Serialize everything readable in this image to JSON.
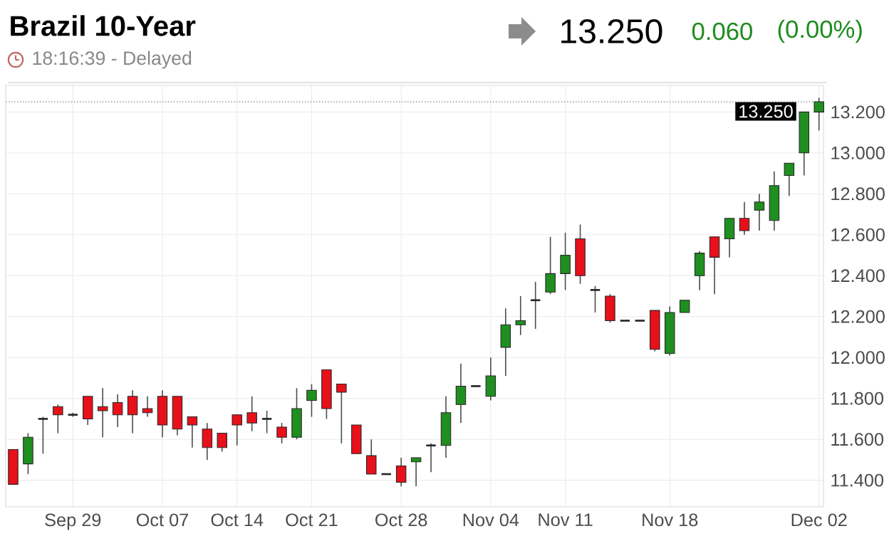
{
  "chart_data": {
    "type": "candlestick",
    "title": "Brazil 10-Year",
    "subtitle": "18:16:39 - Delayed",
    "annotations": [
      "13.250",
      "0.060",
      "(0.00%)"
    ],
    "categories": [
      null,
      null,
      null,
      null,
      "Sep 29",
      null,
      null,
      null,
      null,
      null,
      "Oct 07",
      null,
      null,
      null,
      null,
      "Oct 14",
      null,
      null,
      null,
      null,
      "Oct 21",
      null,
      null,
      null,
      null,
      null,
      "Oct 28",
      null,
      null,
      null,
      null,
      null,
      "Nov 04",
      null,
      null,
      null,
      null,
      "Nov 11",
      null,
      null,
      null,
      null,
      null,
      null,
      "Nov 18",
      null,
      null,
      null,
      null,
      null,
      null,
      null,
      null,
      null,
      "Dec 02"
    ],
    "ohlc": [
      [
        11.55,
        11.55,
        11.38,
        11.38
      ],
      [
        11.48,
        11.63,
        11.43,
        11.61
      ],
      [
        11.7,
        11.71,
        11.53,
        11.7
      ],
      [
        11.76,
        11.77,
        11.63,
        11.72
      ],
      [
        11.72,
        11.73,
        11.71,
        11.72
      ],
      [
        11.81,
        11.81,
        11.67,
        11.7
      ],
      [
        11.76,
        11.85,
        11.61,
        11.74
      ],
      [
        11.78,
        11.82,
        11.66,
        11.72
      ],
      [
        11.81,
        11.84,
        11.63,
        11.72
      ],
      [
        11.75,
        11.81,
        11.71,
        11.73
      ],
      [
        11.81,
        11.84,
        11.61,
        11.67
      ],
      [
        11.81,
        11.81,
        11.62,
        11.65
      ],
      [
        11.71,
        11.71,
        11.56,
        11.67
      ],
      [
        11.65,
        11.68,
        11.5,
        11.56
      ],
      [
        11.63,
        11.63,
        11.54,
        11.56
      ],
      [
        11.72,
        11.72,
        11.57,
        11.67
      ],
      [
        11.73,
        11.81,
        11.64,
        11.68
      ],
      [
        11.7,
        11.74,
        11.63,
        11.7
      ],
      [
        11.66,
        11.68,
        11.58,
        11.61
      ],
      [
        11.61,
        11.85,
        11.6,
        11.75
      ],
      [
        11.79,
        11.87,
        11.71,
        11.84
      ],
      [
        11.94,
        11.94,
        11.7,
        11.75
      ],
      [
        11.87,
        11.87,
        11.58,
        11.83
      ],
      [
        11.67,
        11.67,
        11.53,
        11.53
      ],
      [
        11.52,
        11.6,
        11.43,
        11.43
      ],
      [
        11.43,
        11.43,
        11.43,
        11.43
      ],
      [
        11.47,
        11.51,
        11.37,
        11.39
      ],
      [
        11.49,
        11.51,
        11.37,
        11.51
      ],
      [
        11.57,
        11.58,
        11.44,
        11.57
      ],
      [
        11.57,
        11.81,
        11.51,
        11.73
      ],
      [
        11.77,
        11.97,
        11.68,
        11.86
      ],
      [
        11.86,
        11.86,
        11.86,
        11.86
      ],
      [
        11.81,
        12.0,
        11.79,
        11.91
      ],
      [
        12.05,
        12.24,
        11.91,
        12.16
      ],
      [
        12.16,
        12.3,
        12.11,
        12.18
      ],
      [
        12.28,
        12.37,
        12.14,
        12.28
      ],
      [
        12.32,
        12.59,
        12.31,
        12.41
      ],
      [
        12.41,
        12.61,
        12.33,
        12.5
      ],
      [
        12.58,
        12.65,
        12.36,
        12.4
      ],
      [
        12.33,
        12.35,
        12.22,
        12.33
      ],
      [
        12.3,
        12.31,
        12.17,
        12.18
      ],
      [
        12.18,
        12.18,
        12.18,
        12.18
      ],
      [
        12.18,
        12.18,
        12.18,
        12.18
      ],
      [
        12.23,
        12.23,
        12.03,
        12.04
      ],
      [
        12.02,
        12.25,
        12.01,
        12.22
      ],
      [
        12.22,
        12.28,
        12.22,
        12.28
      ],
      [
        12.4,
        12.52,
        12.33,
        12.51
      ],
      [
        12.59,
        12.59,
        12.31,
        12.49
      ],
      [
        12.58,
        12.68,
        12.49,
        12.68
      ],
      [
        12.68,
        12.76,
        12.6,
        12.62
      ],
      [
        12.72,
        12.8,
        12.62,
        12.76
      ],
      [
        12.67,
        12.91,
        12.62,
        12.84
      ],
      [
        12.89,
        12.95,
        12.79,
        12.95
      ],
      [
        13.0,
        13.2,
        12.89,
        13.2
      ],
      [
        13.2,
        13.27,
        13.11,
        13.25
      ]
    ],
    "colors": [
      "#e8101a",
      "#1f8f1f",
      "#333333",
      "#e8101a",
      "#333333",
      "#e8101a",
      "#e8101a",
      "#e8101a",
      "#e8101a",
      "#e8101a",
      "#e8101a",
      "#e8101a",
      "#e8101a",
      "#e8101a",
      "#e8101a",
      "#e8101a",
      "#e8101a",
      "#333333",
      "#e8101a",
      "#1f8f1f",
      "#1f8f1f",
      "#e8101a",
      "#e8101a",
      "#e8101a",
      "#e8101a",
      "#333333",
      "#e8101a",
      "#1f8f1f",
      "#333333",
      "#1f8f1f",
      "#1f8f1f",
      "#333333",
      "#1f8f1f",
      "#1f8f1f",
      "#1f8f1f",
      "#333333",
      "#1f8f1f",
      "#1f8f1f",
      "#e8101a",
      "#333333",
      "#e8101a",
      "#333333",
      "#333333",
      "#e8101a",
      "#1f8f1f",
      "#1f8f1f",
      "#1f8f1f",
      "#e8101a",
      "#1f8f1f",
      "#e8101a",
      "#1f8f1f",
      "#1f8f1f",
      "#1f8f1f",
      "#1f8f1f",
      "#1f8f1f"
    ],
    "ylim": [
      11.27,
      13.33
    ],
    "yticks": [
      {
        "value": 11.4,
        "label": "11.400"
      },
      {
        "value": 11.6,
        "label": "11.600"
      },
      {
        "value": 11.8,
        "label": "11.800"
      },
      {
        "value": 12.0,
        "label": "12.000"
      },
      {
        "value": 12.2,
        "label": "12.200"
      },
      {
        "value": 12.4,
        "label": "12.400"
      },
      {
        "value": 12.6,
        "label": "12.600"
      },
      {
        "value": 12.8,
        "label": "12.800"
      },
      {
        "value": 13.0,
        "label": "13.000"
      },
      {
        "value": 13.2,
        "label": "13.200"
      }
    ],
    "grid": true,
    "ref_lines": [
      {
        "axis": "y",
        "value": 13.25,
        "label": "13.250",
        "line_style": "dotted"
      }
    ]
  }
}
